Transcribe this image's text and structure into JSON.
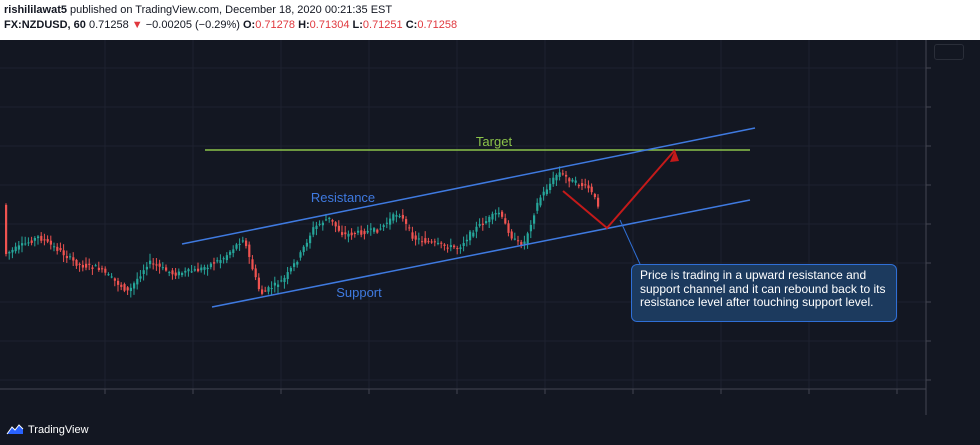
{
  "header": {
    "author": "rishililawat5",
    "published": "published on TradingView.com, December 18, 2020 00:21:35 EST",
    "symbol": "FX:NZDUSD, 60",
    "last_price": "0.71258",
    "change_arrow": "▼",
    "change": "−0.00205 (−0.29%)",
    "open_label": "O:",
    "open_value": "0.71278",
    "high_label": "H:",
    "high_value": "0.71304",
    "low_label": "L:",
    "low_value": "0.71251",
    "close_label": "C:",
    "close_value": "0.71258"
  },
  "chart": {
    "label_target": "Target",
    "label_resistance": "Resistance",
    "label_support": "Support",
    "colors": {
      "background": "#131722",
      "up_candle": "#26a69a",
      "down_candle": "#ef5350",
      "channel_line": "#3f7ae0",
      "target_line": "#8bc34a",
      "arrow": "#c41a1a"
    }
  },
  "annotation": {
    "text": "Price is trading in a upward resistance and support channel and it can rebound back to its resistance level after touching support level."
  },
  "footer": {
    "brand": "TradingView",
    "logo_icon": "tradingview-logo-icon"
  }
}
